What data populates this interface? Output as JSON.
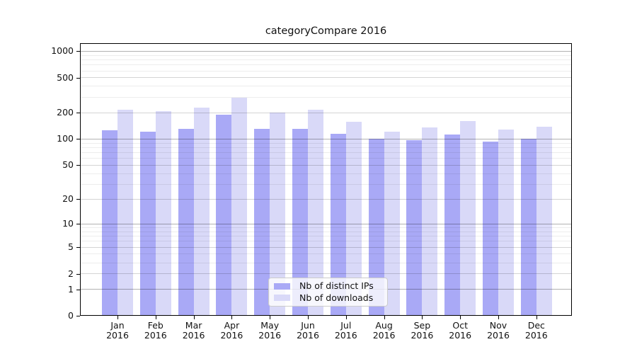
{
  "figure": {
    "background": "#ffffff",
    "title": "categoryCompare 2016"
  },
  "chart_data": {
    "type": "bar",
    "title": "categoryCompare 2016",
    "xlabel": "",
    "ylabel": "",
    "categories": [
      "Jan 2016",
      "Feb 2016",
      "Mar 2016",
      "Apr 2016",
      "May 2016",
      "Jun 2016",
      "Jul 2016",
      "Aug 2016",
      "Sep 2016",
      "Oct 2016",
      "Nov 2016",
      "Dec 2016"
    ],
    "series": [
      {
        "name": "Nb of distinct IPs",
        "color": "#a9a9f6",
        "values": [
          126,
          121,
          130,
          189,
          130,
          131,
          116,
          101,
          97,
          113,
          93,
          101
        ]
      },
      {
        "name": "Nb of downloads",
        "color": "#d9d9f8",
        "values": [
          218,
          210,
          229,
          299,
          200,
          216,
          157,
          122,
          135,
          161,
          129,
          138
        ]
      }
    ],
    "y_scale": "log1p",
    "y_ticks": [
      1000,
      500,
      200,
      100,
      50,
      20,
      10,
      5,
      2,
      1,
      0
    ],
    "y_tick_labels": [
      "1000",
      "500",
      "200",
      "100",
      "50",
      "20",
      "10",
      "5",
      "2",
      "1",
      "0"
    ],
    "ylim": [
      0,
      1250
    ],
    "grid": "on",
    "legend_position": "lower center",
    "colors": {
      "grid_minor": "rgba(0,0,0,0.07)",
      "grid_major_light": "rgba(0,0,0,0.10)",
      "grid_major_pow10": "rgba(0,0,0,0.30)",
      "axis": "#000000"
    }
  },
  "legend": {
    "items": [
      {
        "label": "Nb of distinct IPs"
      },
      {
        "label": "Nb of downloads"
      }
    ]
  }
}
